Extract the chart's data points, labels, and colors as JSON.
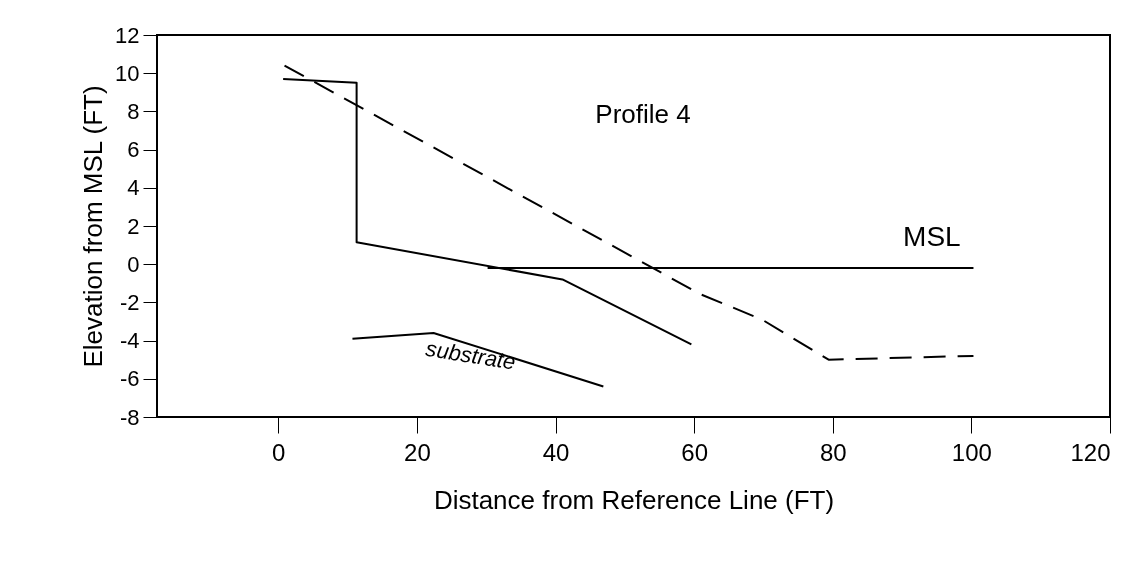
{
  "chart_data": {
    "type": "line",
    "xlabel": "Distance from Reference Line (FT)",
    "ylabel": "Elevation from MSL (FT)",
    "annotations": [
      "Profile 4"
    ],
    "xlim": [
      -17.5,
      120
    ],
    "xticks": [
      0,
      20,
      40,
      60,
      80,
      100,
      120
    ],
    "ylim": [
      -8,
      12
    ],
    "yticks": [
      -8,
      -6,
      -4,
      -2,
      0,
      2,
      4,
      6,
      8,
      10,
      12
    ],
    "grid": false,
    "marker": "none",
    "series": [
      {
        "color": "#000000",
        "line_style": "solid",
        "x": [
          0.7,
          11.3,
          11.3,
          41,
          59.6
        ],
        "values": [
          9.7,
          9.5,
          1.15,
          -0.8,
          -4.2
        ]
      },
      {
        "color": "#000000",
        "line_style": "dashed",
        "x": [
          0.9,
          60.9,
          69.8,
          79.4,
          100.3
        ],
        "values": [
          10.4,
          -1.57,
          -2.9,
          -5.0,
          -4.8
        ]
      },
      {
        "name": "MSL",
        "color": "#000000",
        "line_style": "solid",
        "x": [
          30.2,
          100.3
        ],
        "values": [
          -0.2,
          -0.2
        ]
      },
      {
        "name": "substrate",
        "color": "#000000",
        "line_style": "solid",
        "x": [
          10.7,
          22.4,
          46.9
        ],
        "values": [
          -3.9,
          -3.6,
          -6.4
        ]
      }
    ]
  }
}
